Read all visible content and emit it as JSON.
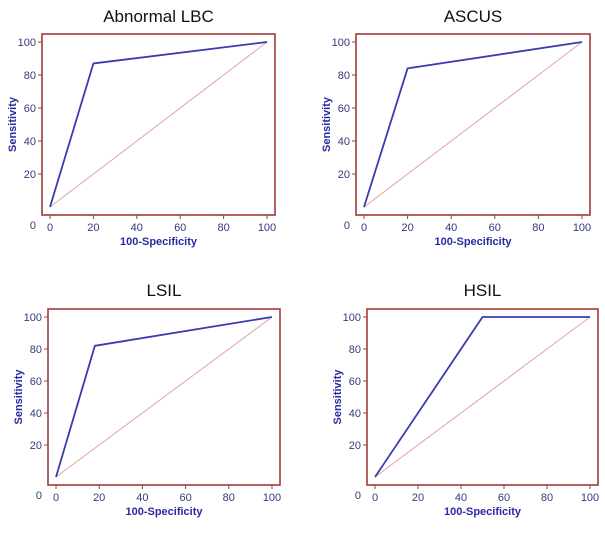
{
  "colors": {
    "frame": "#a03a3a",
    "roc_line": "#3b3bb0",
    "diagonal": "#e2a3a3",
    "tick_text": "#333a7a",
    "axis_label": "#2a2aa0"
  },
  "chart_data": [
    {
      "type": "line",
      "title": "Abnormal LBC",
      "xlabel": "100-Specificity",
      "ylabel": "Sensitivity",
      "xlim": [
        0,
        100
      ],
      "ylim": [
        0,
        100
      ],
      "xticks": [
        "0",
        "20",
        "40",
        "60",
        "80",
        "100"
      ],
      "yticks": [
        "0",
        "20",
        "40",
        "60",
        "80",
        "100"
      ],
      "roc_curve": {
        "x": [
          0,
          20,
          100
        ],
        "y": [
          0,
          87,
          100
        ]
      },
      "reference": {
        "x": [
          0,
          100
        ],
        "y": [
          0,
          100
        ]
      }
    },
    {
      "type": "line",
      "title": "ASCUS",
      "xlabel": "100-Specificity",
      "ylabel": "Sensitivity",
      "xlim": [
        0,
        100
      ],
      "ylim": [
        0,
        100
      ],
      "xticks": [
        "0",
        "20",
        "40",
        "60",
        "80",
        "100"
      ],
      "yticks": [
        "0",
        "20",
        "40",
        "60",
        "80",
        "100"
      ],
      "roc_curve": {
        "x": [
          0,
          20,
          100
        ],
        "y": [
          0,
          84,
          100
        ]
      },
      "reference": {
        "x": [
          0,
          100
        ],
        "y": [
          0,
          100
        ]
      }
    },
    {
      "type": "line",
      "title": "LSIL",
      "xlabel": "100-Specificity",
      "ylabel": "Sensitivity",
      "xlim": [
        0,
        100
      ],
      "ylim": [
        0,
        100
      ],
      "xticks": [
        "0",
        "20",
        "40",
        "60",
        "80",
        "100"
      ],
      "yticks": [
        "0",
        "20",
        "40",
        "60",
        "80",
        "100"
      ],
      "roc_curve": {
        "x": [
          0,
          18,
          100
        ],
        "y": [
          0,
          82,
          100
        ]
      },
      "reference": {
        "x": [
          0,
          100
        ],
        "y": [
          0,
          100
        ]
      }
    },
    {
      "type": "line",
      "title": "HSIL",
      "xlabel": "100-Specificity",
      "ylabel": "Sensitivity",
      "xlim": [
        0,
        100
      ],
      "ylim": [
        0,
        100
      ],
      "xticks": [
        "0",
        "20",
        "40",
        "60",
        "80",
        "100"
      ],
      "yticks": [
        "0",
        "20",
        "40",
        "60",
        "80",
        "100"
      ],
      "roc_curve": {
        "x": [
          0,
          50,
          100
        ],
        "y": [
          0,
          100,
          100
        ]
      },
      "reference": {
        "x": [
          0,
          100
        ],
        "y": [
          0,
          100
        ]
      }
    }
  ]
}
